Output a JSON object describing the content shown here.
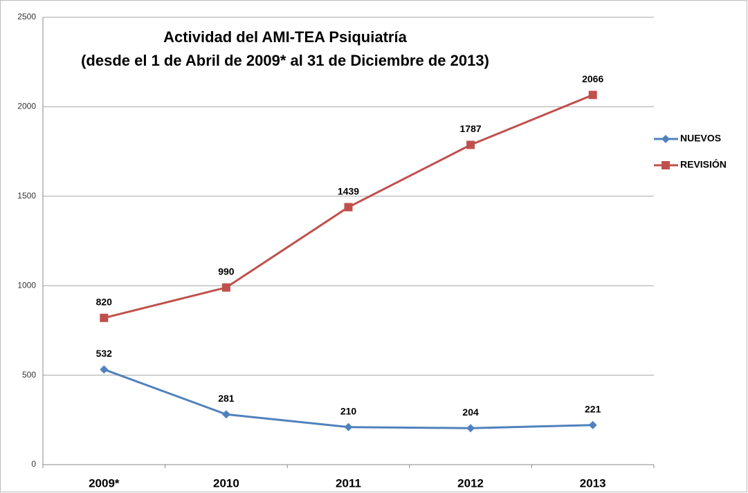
{
  "chart_data": {
    "type": "line",
    "title": "Actividad del AMI-TEA Psiquiatría",
    "subtitle": "(desde el 1 de Abril de 2009* al 31 de Diciembre de 2013)",
    "categories": [
      "2009*",
      "2010",
      "2011",
      "2012",
      "2013"
    ],
    "series": [
      {
        "name": "NUEVOS",
        "color": "#4f81bd",
        "marker": "diamond",
        "values": [
          532,
          281,
          210,
          204,
          221
        ]
      },
      {
        "name": "REVISIÓN",
        "color": "#c0504d",
        "marker": "square",
        "values": [
          820,
          990,
          1439,
          1787,
          2066
        ]
      }
    ],
    "ylim": [
      0,
      2500
    ],
    "yticks": [
      0,
      500,
      1000,
      1500,
      2000,
      2500
    ],
    "grid": true,
    "legend": "right"
  }
}
